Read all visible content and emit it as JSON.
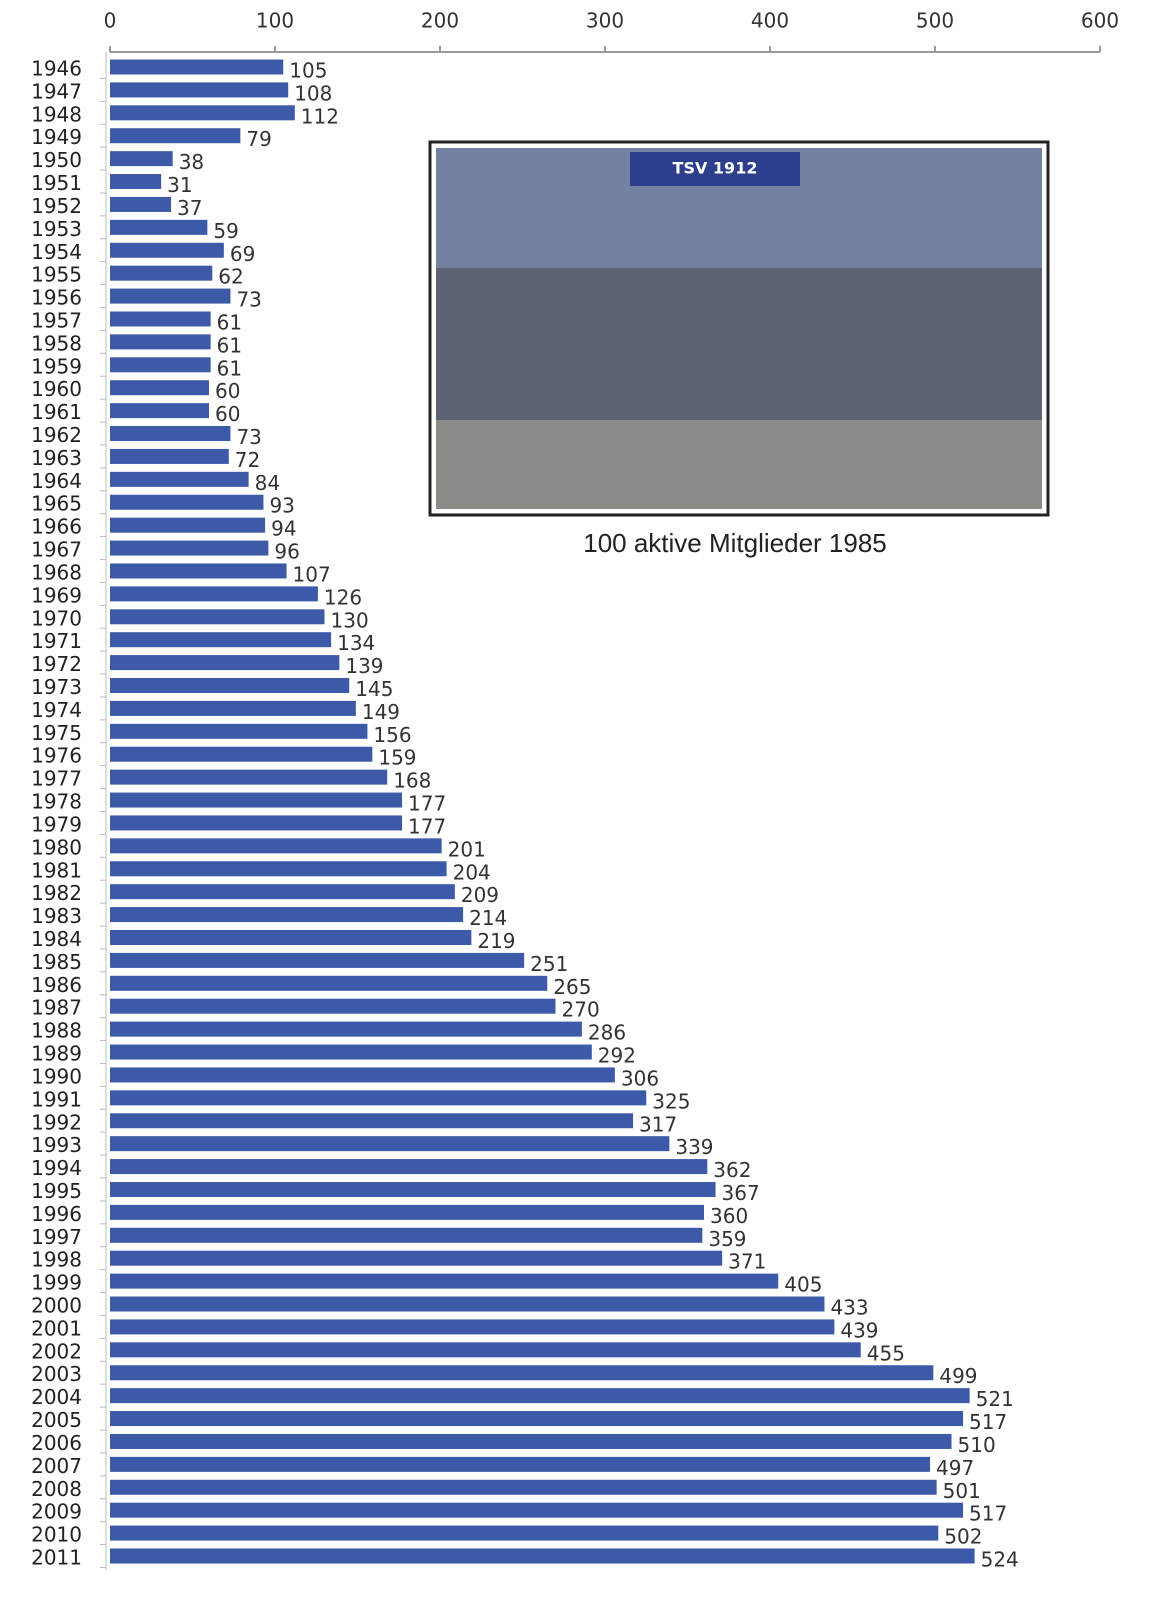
{
  "chart_data": {
    "type": "bar",
    "orientation": "horizontal",
    "categories": [
      "1946",
      "1947",
      "1948",
      "1949",
      "1950",
      "1951",
      "1952",
      "1953",
      "1954",
      "1955",
      "1956",
      "1957",
      "1958",
      "1959",
      "1960",
      "1961",
      "1962",
      "1963",
      "1964",
      "1965",
      "1966",
      "1967",
      "1968",
      "1969",
      "1970",
      "1971",
      "1972",
      "1973",
      "1974",
      "1975",
      "1976",
      "1977",
      "1978",
      "1979",
      "1980",
      "1981",
      "1982",
      "1983",
      "1984",
      "1985",
      "1986",
      "1987",
      "1988",
      "1989",
      "1990",
      "1991",
      "1992",
      "1993",
      "1994",
      "1995",
      "1996",
      "1997",
      "1998",
      "1999",
      "2000",
      "2001",
      "2002",
      "2003",
      "2004",
      "2005",
      "2006",
      "2007",
      "2008",
      "2009",
      "2010",
      "2011"
    ],
    "values": [
      105,
      108,
      112,
      79,
      38,
      31,
      37,
      59,
      69,
      62,
      73,
      61,
      61,
      61,
      60,
      60,
      73,
      72,
      84,
      93,
      94,
      96,
      107,
      126,
      130,
      134,
      139,
      145,
      149,
      156,
      159,
      168,
      177,
      177,
      201,
      204,
      209,
      214,
      219,
      251,
      265,
      270,
      286,
      292,
      306,
      325,
      317,
      339,
      362,
      367,
      360,
      359,
      371,
      405,
      433,
      439,
      455,
      499,
      521,
      517,
      510,
      497,
      501,
      517,
      502,
      524
    ],
    "color": "#3c5aa8",
    "xlim": [
      0,
      600
    ],
    "xticks": [
      0,
      100,
      200,
      300,
      400,
      500,
      600
    ],
    "photo_text": "TSV 1912",
    "annotation": "100 aktive Mitglieder 1985"
  }
}
